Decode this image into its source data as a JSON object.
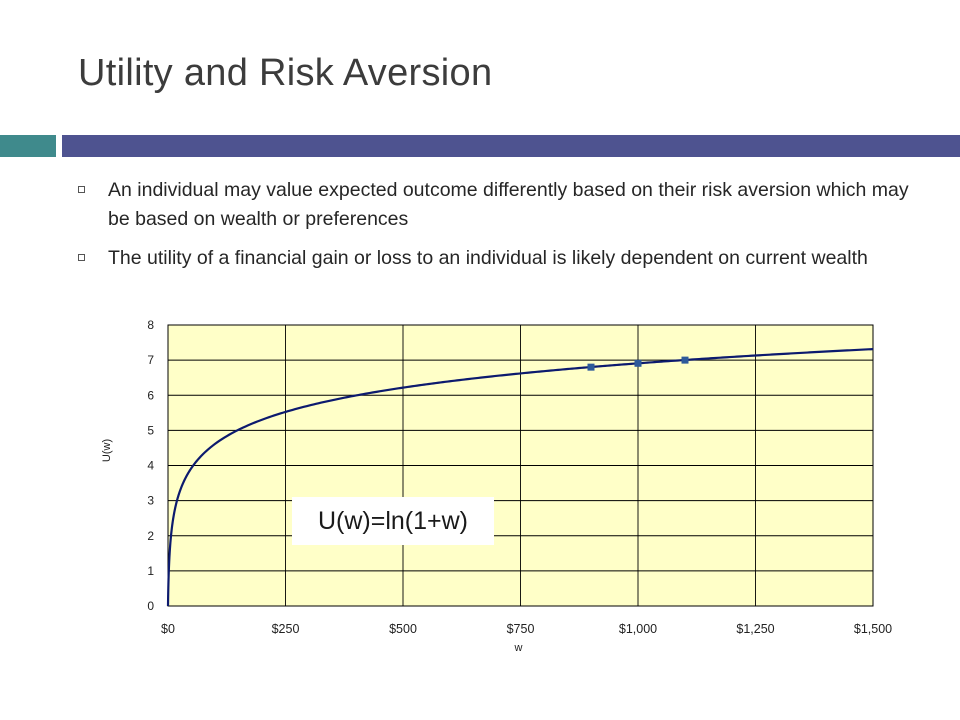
{
  "slide": {
    "title": "Utility and Risk Aversion",
    "accent_colors": {
      "teal": "#3f8a8c",
      "indigo": "#4e5390"
    },
    "bullets": [
      "An individual may value expected outcome differently based on their risk aversion which may be based on wealth or preferences",
      "The utility of a financial gain or loss to an individual is likely dependent on current wealth"
    ],
    "bullet_icon": "hollow-square-icon"
  },
  "chart_data": {
    "type": "line",
    "xlabel": "w",
    "ylabel": "U(w)",
    "xlim": [
      0,
      1500
    ],
    "ylim": [
      0,
      8
    ],
    "x_ticks": [
      0,
      250,
      500,
      750,
      1000,
      1250,
      1500
    ],
    "x_tick_labels": [
      "$0",
      "$250",
      "$500",
      "$750",
      "$1,000",
      "$1,250",
      "$1,500"
    ],
    "y_ticks": [
      0,
      1,
      2,
      3,
      4,
      5,
      6,
      7,
      8
    ],
    "y_tick_labels": [
      "0",
      "1",
      "2",
      "3",
      "4",
      "5",
      "6",
      "7",
      "8"
    ],
    "grid": true,
    "background": "#ffffc8",
    "line_color": "#0c1a6e",
    "marker_color": "#2e5a9a",
    "function": "ln(1+w)",
    "markers": [
      {
        "x": 900,
        "y": 6.8
      },
      {
        "x": 1000,
        "y": 6.91
      },
      {
        "x": 1100,
        "y": 7.0
      }
    ],
    "annotation": "U(w)=ln(1+w)"
  }
}
